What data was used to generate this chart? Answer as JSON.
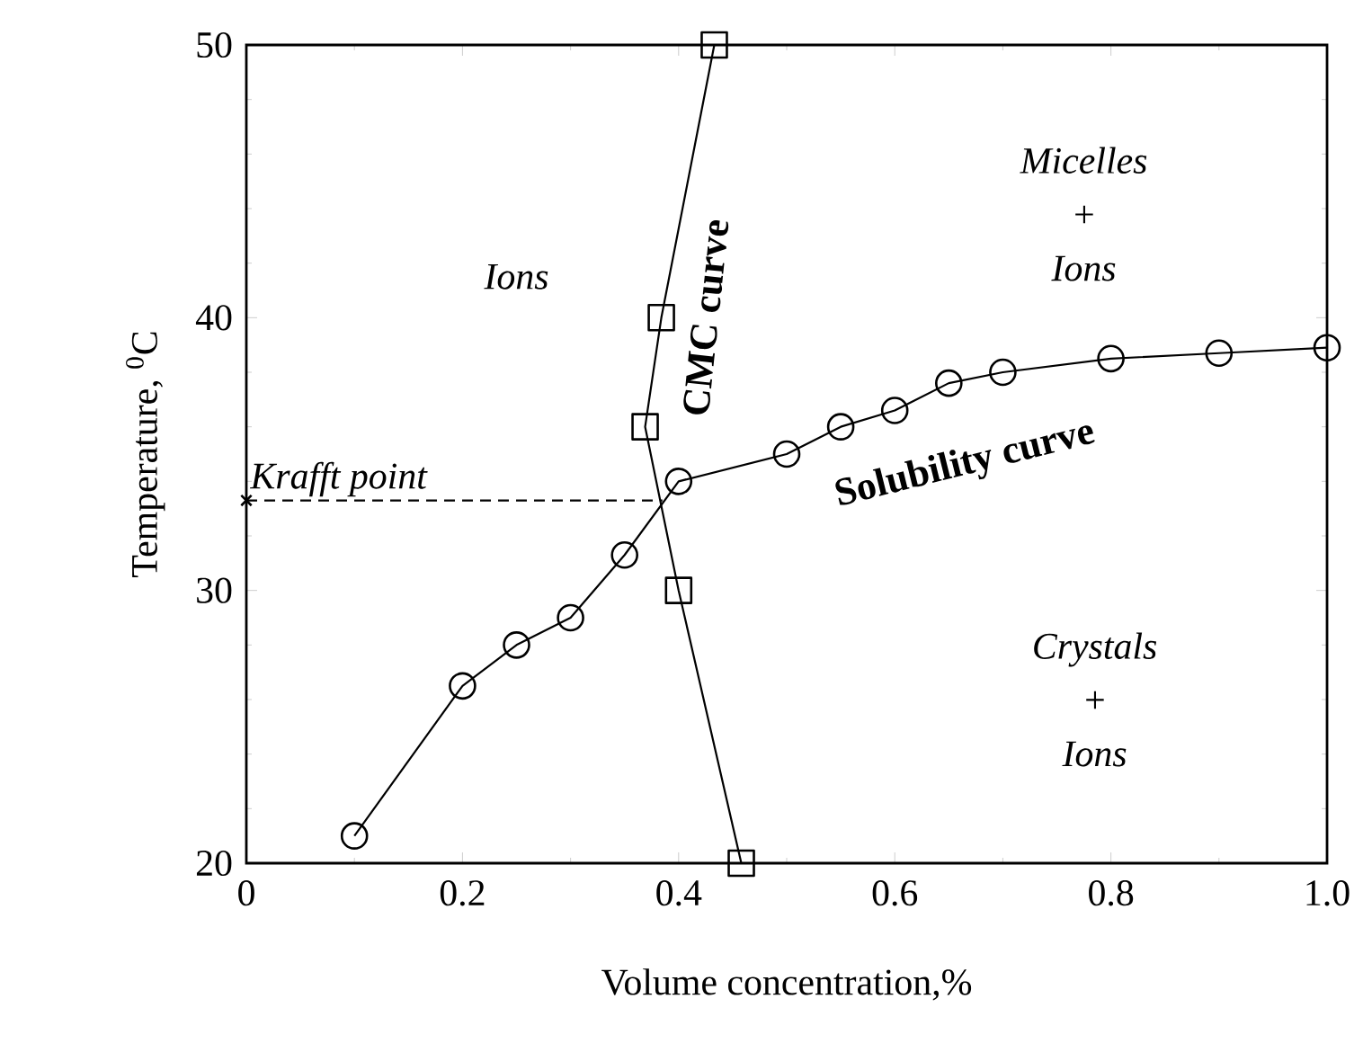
{
  "chart_data": {
    "type": "line",
    "xlabel": "Volume concentration,%",
    "ylabel": "Temperature, $^{0}$C",
    "xlim": [
      0,
      1
    ],
    "ylim": [
      20,
      50
    ],
    "xticks": [
      0,
      0.2,
      0.4,
      0.6,
      0.8,
      {
        "value": 1,
        "label": "1.0"
      }
    ],
    "yticks": [
      20,
      30,
      40,
      50
    ],
    "series": [
      {
        "name": "Solubility curve",
        "color": "#000000",
        "marker": "circle",
        "line_style": "solid",
        "x": [
          0.1,
          0.2,
          0.25,
          0.3,
          0.35,
          0.4,
          0.5,
          0.55,
          0.6,
          0.65,
          0.7,
          0.8,
          0.9,
          1.0
        ],
        "values": [
          21,
          26.5,
          28,
          29,
          31.3,
          34,
          35,
          36,
          36.6,
          37.6,
          38,
          38.5,
          38.7,
          38.9
        ]
      },
      {
        "name": "CMC curve",
        "color": "#000000",
        "marker": "square",
        "line_style": "solid",
        "x": [
          0.458,
          0.4,
          0.369,
          0.384,
          0.433
        ],
        "values": [
          20,
          30,
          36,
          40,
          50
        ]
      },
      {
        "color": "#000000",
        "marker": "none",
        "line_style": "dashed",
        "x": [
          0,
          0.385
        ],
        "values": [
          33.3,
          33.3
        ]
      },
      {
        "type": "scatter",
        "color": "#000000",
        "marker": "cross",
        "x": [
          0
        ],
        "values": [
          33.3
        ]
      }
    ],
    "annotations": [
      {
        "text": "Krafft point",
        "x": 0,
        "y": 33.3
      },
      "Ions",
      "Micelles + Ions",
      "Crystals + Ions"
    ]
  }
}
